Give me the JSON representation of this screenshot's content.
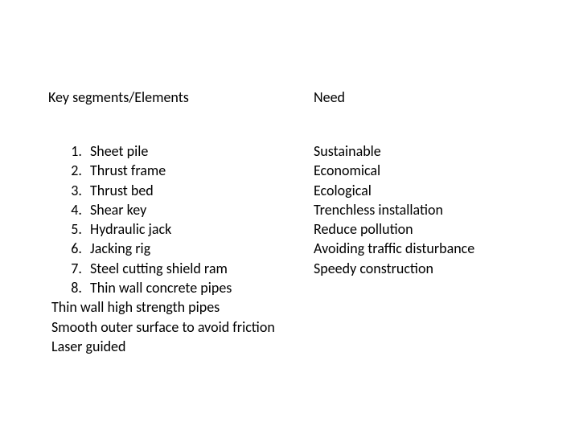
{
  "left": {
    "heading": "Key segments/Elements",
    "numbered": [
      "Sheet pile",
      "Thrust frame",
      "Thrust bed",
      "Shear key",
      "Hydraulic jack",
      "Jacking rig",
      "Steel cutting shield ram",
      "Thin wall concrete pipes"
    ],
    "plain": [
      "Thin wall high strength pipes",
      "Smooth outer surface to avoid friction",
      "Laser guided"
    ]
  },
  "right": {
    "heading": "Need",
    "items": [
      "Sustainable",
      "Economical",
      "Ecological",
      "Trenchless installation",
      "Reduce pollution",
      "Avoiding traffic disturbance",
      "Speedy construction"
    ]
  },
  "style": {
    "background_color": "#ffffff",
    "text_color": "#000000",
    "font_family": "Calibri",
    "heading_fontsize_pt": 14,
    "body_fontsize_pt": 14
  }
}
